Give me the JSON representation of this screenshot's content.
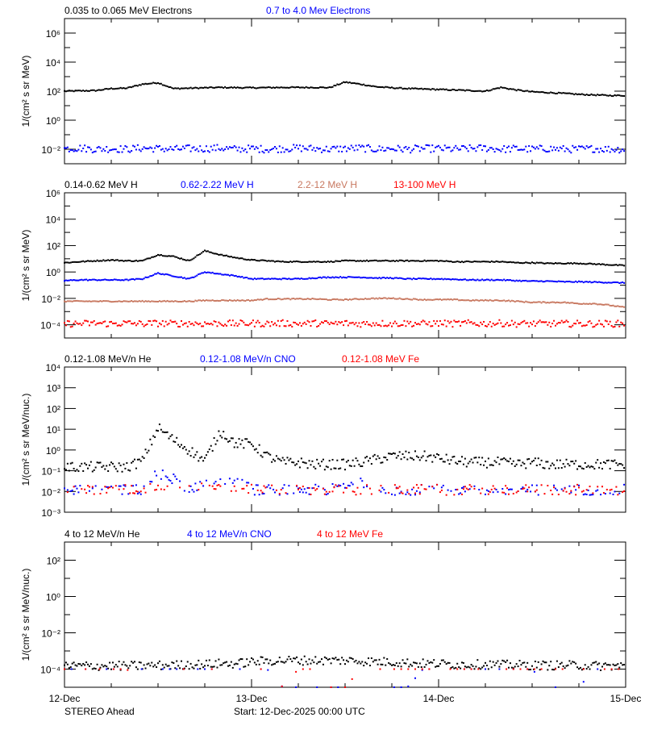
{
  "colors": {
    "black": "#000000",
    "blue": "#0000ff",
    "sienna": "#c87860",
    "red": "#ff0000"
  },
  "footer": {
    "spacecraft": "STEREO Ahead",
    "start": "Start: 12-Dec-2025 00:00 UTC"
  },
  "chart_data": [
    {
      "type": "scatter",
      "ylabel": "1/(cm² s sr MeV)",
      "yscale": "log",
      "ylim": [
        0.001,
        10000000
      ],
      "ytick_labels": [
        {
          "value": 1000000,
          "label": "10⁶"
        },
        {
          "value": 10000,
          "label": "10⁴"
        },
        {
          "value": 100,
          "label": "10²"
        },
        {
          "value": 1,
          "label": "10⁰"
        },
        {
          "value": 0.01,
          "label": "10⁻²"
        }
      ],
      "x_hours": [
        0,
        2,
        4,
        6,
        8,
        10,
        12,
        14,
        16,
        18,
        20,
        22,
        24,
        26,
        28,
        30,
        32,
        34,
        36,
        38,
        40,
        42,
        44,
        46,
        48,
        50,
        52,
        54,
        56,
        58,
        60,
        62,
        64,
        66,
        68,
        70,
        72
      ],
      "series": [
        {
          "name": "0.035 to 0.065 MeV Electrons",
          "color": "#000000",
          "style": "line",
          "values": [
            100,
            105,
            110,
            150,
            160,
            300,
            380,
            150,
            160,
            170,
            180,
            175,
            170,
            175,
            180,
            180,
            180,
            175,
            420,
            300,
            200,
            170,
            150,
            140,
            130,
            120,
            110,
            100,
            180,
            120,
            90,
            80,
            70,
            60,
            55,
            50,
            50
          ]
        },
        {
          "name": "0.7 to 4.0 Mev Electrons",
          "color": "#0000ff",
          "style": "scatter",
          "values": [
            0.011,
            0.012,
            0.01,
            0.011,
            0.01,
            0.012,
            0.011,
            0.01,
            0.011,
            0.011,
            0.012,
            0.01,
            0.011,
            0.01,
            0.011,
            0.012,
            0.011,
            0.01,
            0.011,
            0.012,
            0.01,
            0.011,
            0.01,
            0.011,
            0.011,
            0.01,
            0.011,
            0.012,
            0.01,
            0.011,
            0.01,
            0.011,
            0.01,
            0.01,
            0.011,
            0.01,
            0.01
          ]
        }
      ]
    },
    {
      "type": "scatter",
      "ylabel": "1/(cm² s sr MeV)",
      "yscale": "log",
      "ylim": [
        1e-05,
        1000000
      ],
      "ytick_labels": [
        {
          "value": 1000000,
          "label": "10⁶"
        },
        {
          "value": 10000,
          "label": "10⁴"
        },
        {
          "value": 100,
          "label": "10²"
        },
        {
          "value": 1,
          "label": "10⁰"
        },
        {
          "value": 0.01,
          "label": "10⁻²"
        },
        {
          "value": 0.0001,
          "label": "10⁻⁴"
        }
      ],
      "x_hours": [
        0,
        2,
        4,
        6,
        8,
        10,
        12,
        14,
        16,
        18,
        20,
        22,
        24,
        26,
        28,
        30,
        32,
        34,
        36,
        38,
        40,
        42,
        44,
        46,
        48,
        50,
        52,
        54,
        56,
        58,
        60,
        62,
        64,
        66,
        68,
        70,
        72
      ],
      "series": [
        {
          "name": "0.14-0.62 MeV H",
          "color": "#000000",
          "style": "line",
          "values": [
            5,
            6,
            7,
            8,
            7,
            7,
            20,
            15,
            7,
            40,
            20,
            12,
            8,
            7,
            6,
            6,
            6,
            6,
            7,
            7,
            7,
            7,
            7,
            7,
            7,
            6,
            6,
            6,
            6,
            5,
            5,
            4.5,
            4.5,
            4.5,
            4,
            3.5,
            3
          ]
        },
        {
          "name": "0.62-2.22 MeV H",
          "color": "#0000ff",
          "style": "line",
          "values": [
            0.22,
            0.25,
            0.25,
            0.25,
            0.25,
            0.3,
            0.8,
            0.5,
            0.3,
            1.0,
            0.7,
            0.5,
            0.3,
            0.3,
            0.3,
            0.3,
            0.35,
            0.4,
            0.4,
            0.4,
            0.35,
            0.35,
            0.3,
            0.3,
            0.3,
            0.28,
            0.25,
            0.25,
            0.25,
            0.22,
            0.2,
            0.2,
            0.18,
            0.18,
            0.17,
            0.16,
            0.15
          ]
        },
        {
          "name": "2.2-12 MeV H",
          "color": "#c87860",
          "style": "line",
          "values": [
            0.006,
            0.006,
            0.006,
            0.006,
            0.006,
            0.006,
            0.006,
            0.006,
            0.006,
            0.007,
            0.007,
            0.007,
            0.007,
            0.009,
            0.009,
            0.009,
            0.009,
            0.008,
            0.008,
            0.009,
            0.01,
            0.01,
            0.009,
            0.008,
            0.008,
            0.008,
            0.007,
            0.007,
            0.007,
            0.006,
            0.005,
            0.005,
            0.005,
            0.004,
            0.004,
            0.003,
            0.002
          ]
        },
        {
          "name": "13-100 MeV H",
          "color": "#ff0000",
          "style": "scatter",
          "values": [
            0.00012,
            0.00012,
            0.00013,
            0.00012,
            0.00013,
            0.00012,
            0.00013,
            0.00012,
            0.00013,
            0.00012,
            0.00013,
            0.00012,
            0.00013,
            0.00012,
            0.00013,
            0.00012,
            0.00013,
            0.00012,
            0.00013,
            0.00012,
            0.00013,
            0.00012,
            0.00013,
            0.00012,
            0.00013,
            0.00012,
            0.00013,
            0.00012,
            0.00013,
            0.00012,
            0.00012,
            0.00012,
            0.00012,
            0.00012,
            0.00012,
            0.00012,
            0.00012
          ]
        }
      ]
    },
    {
      "type": "scatter",
      "ylabel": "1/(cm² s sr MeV/nuc.)",
      "yscale": "log",
      "ylim": [
        0.001,
        10000
      ],
      "ytick_labels": [
        {
          "value": 10000,
          "label": "10⁴"
        },
        {
          "value": 1000,
          "label": "10³"
        },
        {
          "value": 100,
          "label": "10²"
        },
        {
          "value": 10,
          "label": "10¹"
        },
        {
          "value": 1,
          "label": "10⁰"
        },
        {
          "value": 0.1,
          "label": "10⁻¹"
        },
        {
          "value": 0.01,
          "label": "10⁻²"
        },
        {
          "value": 0.001,
          "label": "10⁻³"
        }
      ],
      "x_hours": [
        0,
        2,
        4,
        6,
        8,
        10,
        12,
        14,
        16,
        18,
        20,
        22,
        24,
        26,
        28,
        30,
        32,
        34,
        36,
        38,
        40,
        42,
        44,
        46,
        48,
        50,
        52,
        54,
        56,
        58,
        60,
        62,
        64,
        66,
        68,
        70,
        72
      ],
      "series": [
        {
          "name": "0.12-1.08 MeV/n He",
          "color": "#000000",
          "style": "scatter",
          "values": [
            0.15,
            0.15,
            0.15,
            0.15,
            0.15,
            0.3,
            12,
            3,
            1,
            0.3,
            8,
            2,
            2,
            0.5,
            0.25,
            0.25,
            0.2,
            0.2,
            0.2,
            0.25,
            0.35,
            0.5,
            0.5,
            0.5,
            0.4,
            0.3,
            0.25,
            0.25,
            0.25,
            0.2,
            0.25,
            0.2,
            0.2,
            0.2,
            0.2,
            0.2,
            0.2
          ]
        },
        {
          "name": "0.12-1.08 MeV/n CNO",
          "color": "#0000ff",
          "style": "scatter",
          "values": [
            0.012,
            0.012,
            0.012,
            0.012,
            0.012,
            0.012,
            0.08,
            0.04,
            0.012,
            0.03,
            0.04,
            0.04,
            0.012,
            0.012,
            0.012,
            0.012,
            0.012,
            0.012,
            0.02,
            0.03,
            0.02,
            0.012,
            0.012,
            0.012,
            0.012,
            0.012,
            0.012,
            0.012,
            0.012,
            0.012,
            0.012,
            0.012,
            0.012,
            0.012,
            0.012,
            0.012,
            0.012
          ]
        },
        {
          "name": "0.12-1.08 MeV Fe",
          "color": "#ff0000",
          "style": "scatter",
          "values": [
            0.012,
            0.012,
            0.012,
            0.012,
            0.012,
            0.012,
            0.02,
            0.015,
            0.012,
            0.015,
            0.015,
            0.012,
            0.012,
            0.012,
            0.012,
            0.012,
            0.012,
            0.012,
            0.012,
            0.012,
            0.012,
            0.012,
            0.012,
            0.012,
            0.012,
            0.012,
            0.012,
            0.012,
            0.012,
            0.012,
            0.012,
            0.012,
            0.012,
            0.012,
            0.012,
            0.012,
            0.012
          ]
        }
      ]
    },
    {
      "type": "scatter",
      "ylabel": "1/(cm² s sr MeV/nuc.)",
      "yscale": "log",
      "ylim": [
        1e-05,
        1000
      ],
      "ytick_labels": [
        {
          "value": 100,
          "label": "10²"
        },
        {
          "value": 1,
          "label": "10⁰"
        },
        {
          "value": 0.01,
          "label": "10⁻²"
        },
        {
          "value": 0.0001,
          "label": "10⁻⁴"
        }
      ],
      "xtick_labels": [
        "12-Dec",
        "13-Dec",
        "14-Dec",
        "15-Dec"
      ],
      "x_hours": [
        0,
        2,
        4,
        6,
        8,
        10,
        12,
        14,
        16,
        18,
        20,
        22,
        24,
        26,
        28,
        30,
        32,
        34,
        36,
        38,
        40,
        42,
        44,
        46,
        48,
        50,
        52,
        54,
        56,
        58,
        60,
        62,
        64,
        66,
        68,
        70,
        72
      ],
      "series": [
        {
          "name": "4 to 12 MeV/n He",
          "color": "#000000",
          "style": "scatter",
          "values": [
            0.00015,
            0.00015,
            0.00015,
            0.00015,
            0.00015,
            0.00015,
            0.00016,
            0.00016,
            0.00018,
            0.00018,
            0.0002,
            0.0002,
            0.00025,
            0.00028,
            0.0003,
            0.0003,
            0.0003,
            0.0003,
            0.0003,
            0.00028,
            0.00025,
            0.00025,
            0.00022,
            0.0002,
            0.0002,
            0.00018,
            0.00018,
            0.00018,
            0.00017,
            0.00017,
            0.00016,
            0.00016,
            0.00016,
            0.00016,
            0.00015,
            0.00015,
            0.00015
          ]
        },
        {
          "name": "4 to 12 MeV/n CNO",
          "color": "#0000ff",
          "style": "sparse",
          "values": [
            0.0001,
            0.0001,
            0.0001,
            0.0001,
            0.0001,
            0.0001,
            0.0001,
            0.0001,
            0.0001,
            0.0001,
            0.0001,
            0.0001,
            0.0001,
            0.0001,
            1e-05,
            1e-05,
            1e-05,
            1e-05,
            1e-05,
            1e-05,
            2e-05,
            1e-05,
            1e-05,
            0.0001,
            0.0001,
            0.0001,
            0.0001,
            0.0001,
            0.0001,
            0.0001,
            0.0001,
            1e-05,
            1e-05,
            1e-05,
            0.0001,
            0.0001,
            0.0001
          ]
        },
        {
          "name": "4 to 12 MeV Fe",
          "color": "#ff0000",
          "style": "sparse",
          "values": [
            0.0001,
            0.0001,
            0.0001,
            0.0001,
            0.0001,
            1e-05,
            0.0001,
            0.0001,
            0.0001,
            0.0001,
            0.0001,
            1e-05,
            0.0001,
            0.0001,
            1e-05,
            0.0001,
            0.0001,
            1e-05,
            1e-05,
            0.0001,
            0.0001,
            0.0001,
            0.0001,
            0.0001,
            0.0001,
            0.0001,
            0.0001,
            0.0001,
            0.0001,
            0.0001,
            0.0001,
            0.0001,
            0.0001,
            0.0001,
            0.0001,
            0.0001,
            0.0001
          ]
        }
      ]
    }
  ]
}
